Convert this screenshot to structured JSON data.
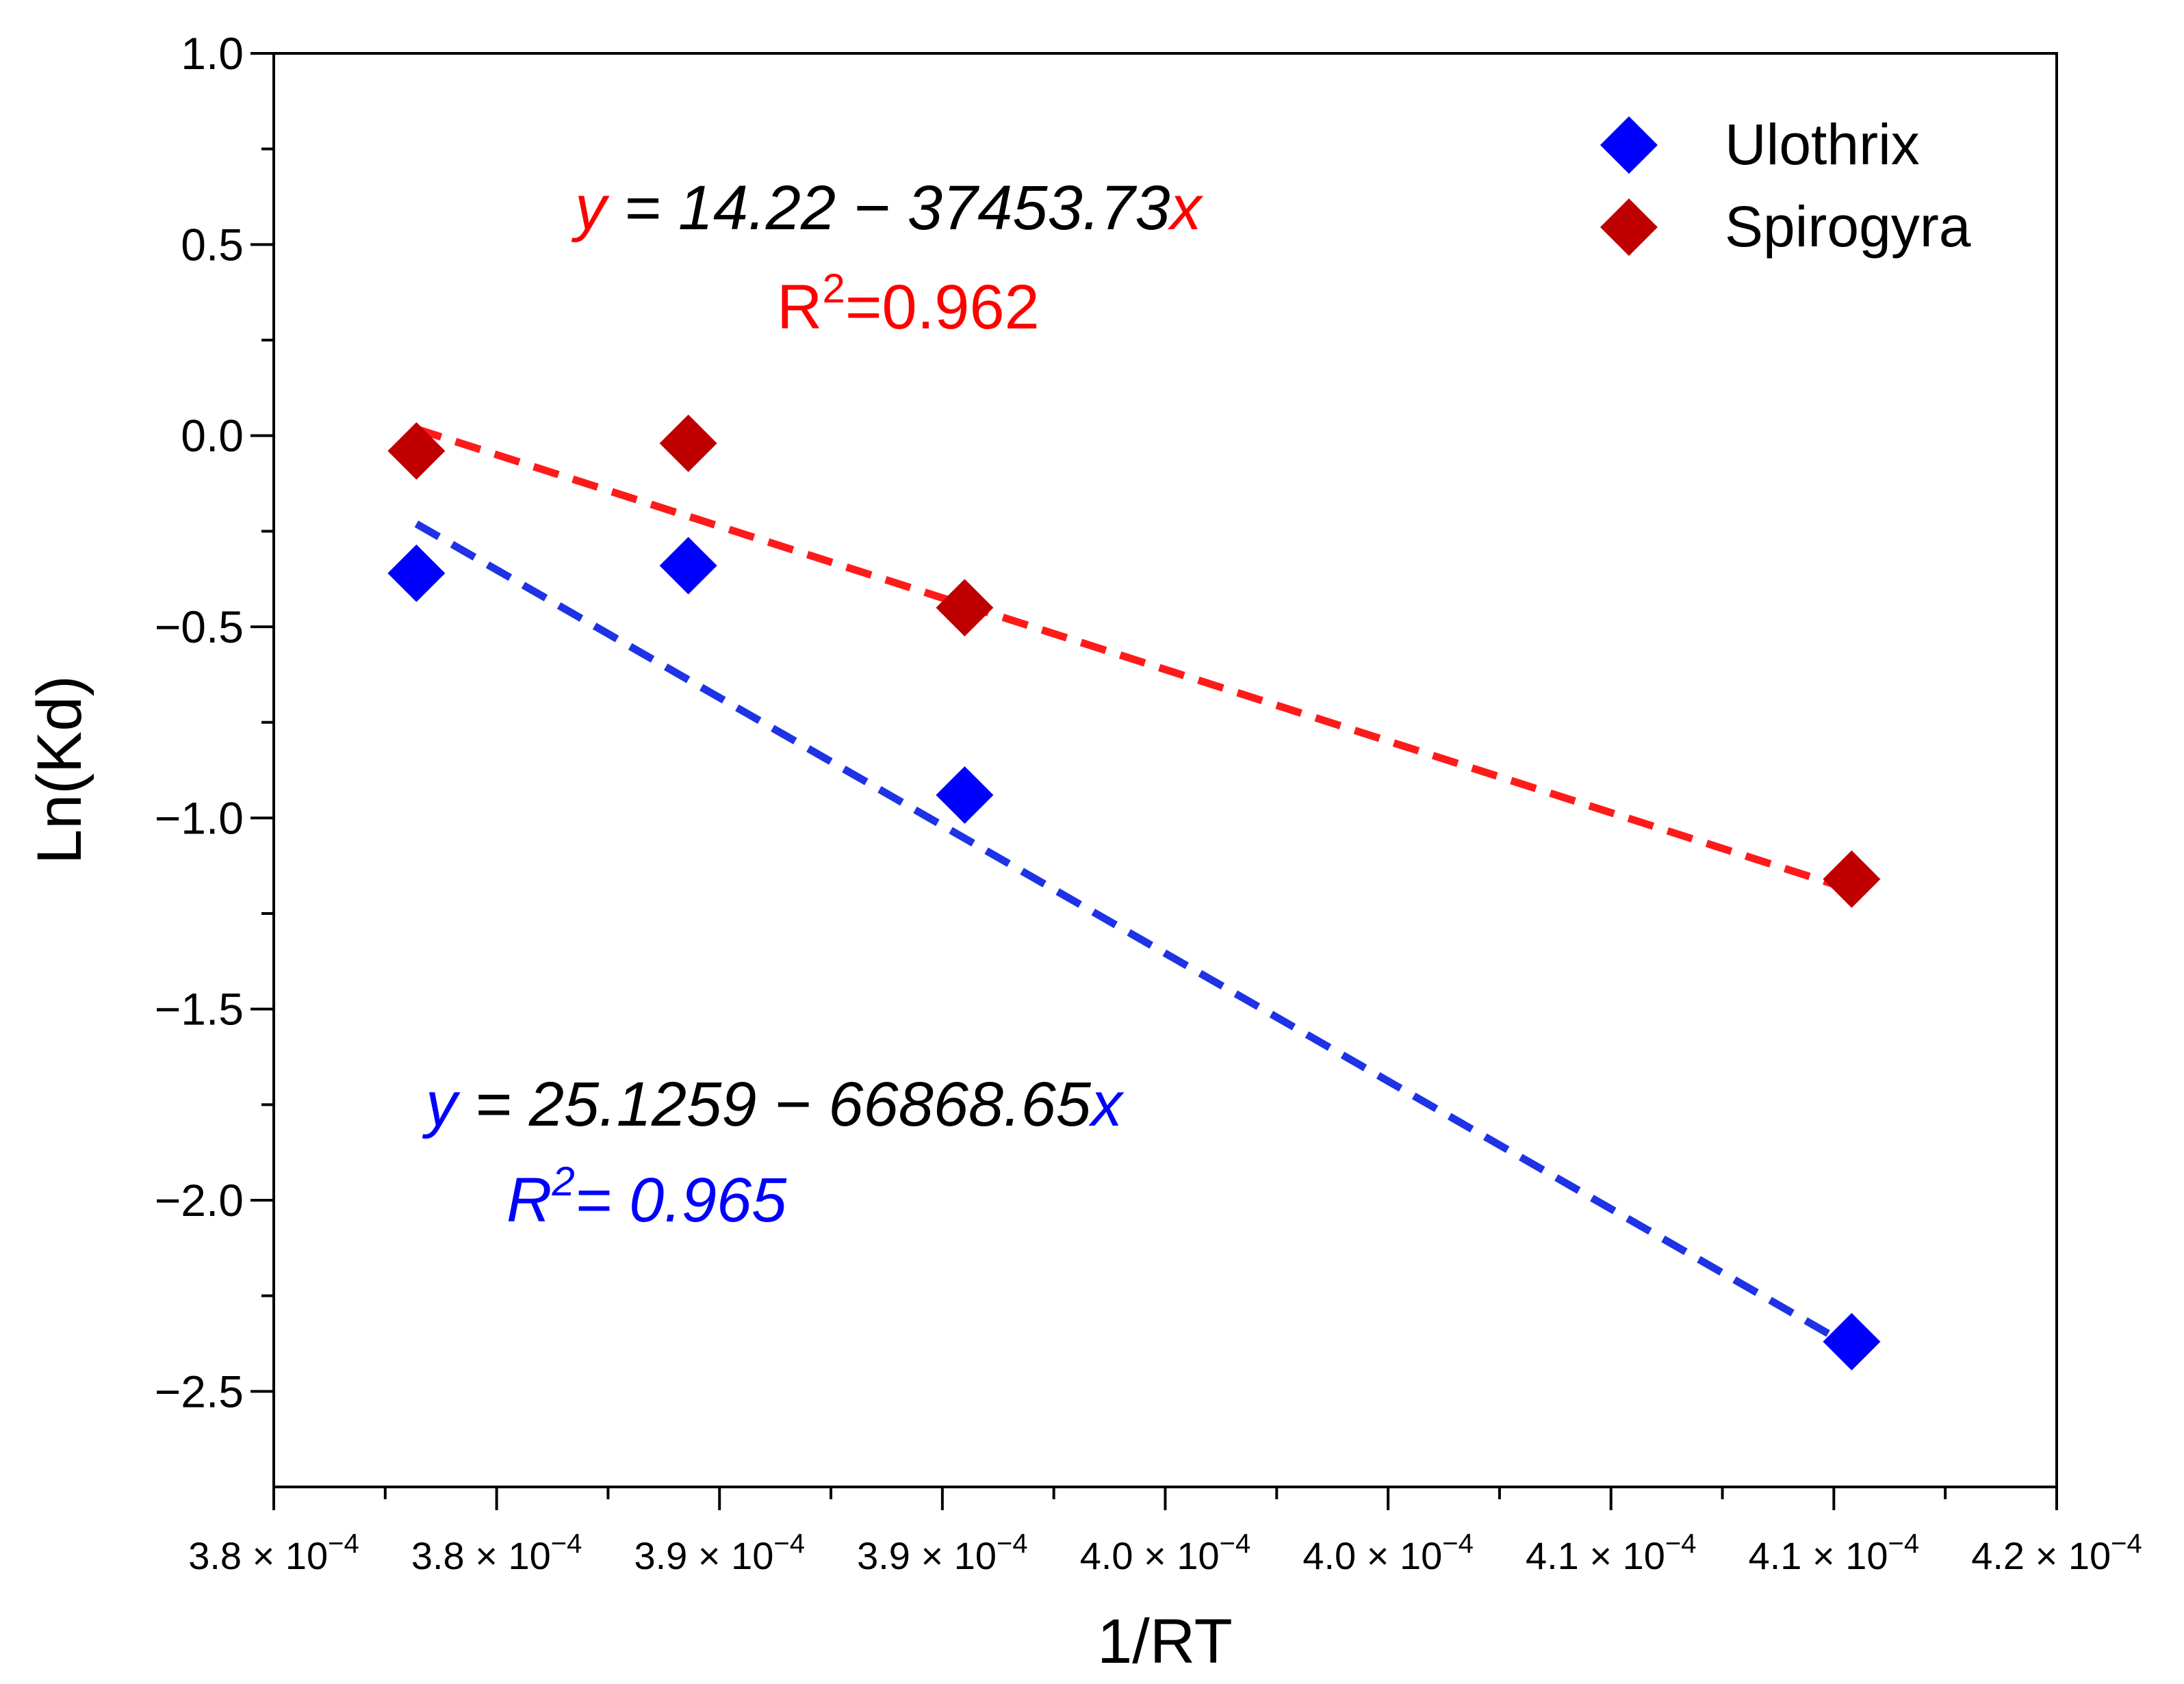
{
  "chart_data": {
    "type": "scatter",
    "title": "",
    "xlabel": "1/RT",
    "ylabel": "Ln(Kd)",
    "xlim": [
      0.000376,
      0.000416
    ],
    "ylim": [
      -2.75,
      1.0
    ],
    "x_tick_values": [
      0.000376,
      0.000381,
      0.000386,
      0.000391,
      0.000396,
      0.000401,
      0.000406,
      0.000411,
      0.000416
    ],
    "x_tick_labels": [
      {
        "mantissa": "3.8",
        "times": "×",
        "base": "10",
        "exp": "−4"
      },
      {
        "mantissa": "3.8",
        "times": "×",
        "base": "10",
        "exp": "−4"
      },
      {
        "mantissa": "3.9",
        "times": "×",
        "base": "10",
        "exp": "−4"
      },
      {
        "mantissa": "3.9",
        "times": "×",
        "base": "10",
        "exp": "−4"
      },
      {
        "mantissa": "4.0",
        "times": "×",
        "base": "10",
        "exp": "−4"
      },
      {
        "mantissa": "4.0",
        "times": "×",
        "base": "10",
        "exp": "−4"
      },
      {
        "mantissa": "4.1",
        "times": "×",
        "base": "10",
        "exp": "−4"
      },
      {
        "mantissa": "4.1",
        "times": "×",
        "base": "10",
        "exp": "−4"
      },
      {
        "mantissa": "4.2",
        "times": "×",
        "base": "10",
        "exp": "−4"
      }
    ],
    "y_tick_values": [
      1.0,
      0.5,
      0.0,
      -0.5,
      -1.0,
      -1.5,
      -2.0,
      -2.5
    ],
    "y_tick_labels": [
      "1.0",
      "0.5",
      "0.0",
      "−0.5",
      "−1.0",
      "−1.5",
      "−2.0",
      "−2.5"
    ],
    "legend_position": "top-right",
    "series": [
      {
        "name": "Ulothrix",
        "color": "#0000ff",
        "marker": "diamond",
        "x": [
          0.0003792,
          0.0003853,
          0.0003915,
          0.0004114
        ],
        "y": [
          -0.36,
          -0.34,
          -0.94,
          -2.37
        ],
        "fit": {
          "intercept": 25.1259,
          "slope": -66868.65,
          "x_range": [
            0.0003792,
            0.0004114
          ]
        }
      },
      {
        "name": "Spirogyra",
        "color": "#c00000",
        "marker": "diamond",
        "x": [
          0.0003792,
          0.0003853,
          0.0003915,
          0.0004114
        ],
        "y": [
          -0.04,
          -0.02,
          -0.45,
          -1.16
        ],
        "fit": {
          "intercept": 14.22,
          "slope": -37453.73,
          "x_range": [
            0.0003792,
            0.0004114
          ]
        }
      }
    ],
    "annotations": {
      "spirogyra_equation": {
        "y": "y",
        "body": " = 14.22 − 37453.73",
        "x": "x",
        "r2_prefix": "R",
        "r2_exp": "2",
        "r2_value": "=0.962",
        "color": "#ff0000"
      },
      "ulothrix_equation": {
        "y": "y",
        "body": " = 25.1259 − 66868.65",
        "x": "x",
        "r2_prefix": "R",
        "r2_exp": "2",
        "r2_value": "= 0.965",
        "color": "#0000ff"
      }
    },
    "fit_line_colors": {
      "Ulothrix": "#1e32e6",
      "Spirogyra": "#ff1a1a"
    }
  }
}
